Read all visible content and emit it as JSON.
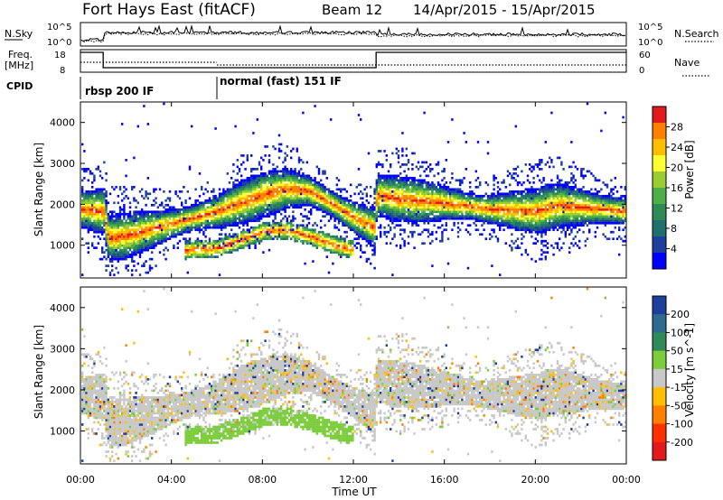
{
  "header": {
    "title": "Fort Hays East (fitACF)",
    "beam": "Beam 12",
    "date_range": "14/Apr/2015 - 15/Apr/2015"
  },
  "noise_panel": {
    "left_label": "N.Sky",
    "right_label": "N.Search",
    "left_ticks": [
      "10^5",
      "10^0"
    ],
    "right_ticks": [
      "10^5",
      "10^0"
    ]
  },
  "freq_panel": {
    "left_label_1": "Freq.",
    "left_label_2": "[MHz]",
    "left_ticks": [
      "18",
      "8"
    ],
    "right_label": "Nave",
    "right_ticks": [
      "60",
      "0"
    ]
  },
  "cpid": {
    "label": "CPID",
    "modes": [
      {
        "name": "rbsp 200 IF",
        "start_hour": 0
      },
      {
        "name": "normal (fast) 151 IF",
        "start_hour": 6
      }
    ]
  },
  "time_axis": {
    "label": "Time UT",
    "ticks": [
      "00:00",
      "04:00",
      "08:00",
      "12:00",
      "16:00",
      "20:00",
      "00:00"
    ],
    "tick_hours": [
      0,
      4,
      8,
      12,
      16,
      20,
      24
    ]
  },
  "chart_data": [
    {
      "type": "heatmap",
      "panel": "power",
      "ylabel": "Slant Range [km]",
      "ylim": [
        200,
        4500
      ],
      "yticks": [
        1000,
        2000,
        3000,
        4000
      ],
      "xlim_hours": [
        0,
        24
      ],
      "colorbar_label": "Power [dB]",
      "colorbar_ticks": [
        "28",
        "24",
        "20",
        "16",
        "12",
        "8",
        "4"
      ],
      "colorbar_colors": [
        "#e31a1c",
        "#ff7f00",
        "#ffbf00",
        "#ffff33",
        "#9acd32",
        "#4daf4a",
        "#2e8b57",
        "#1f6f6f",
        "#1f3f9f",
        "#0000ff"
      ],
      "bands": [
        {
          "name": "main echo",
          "x": [
            0,
            1,
            1.2,
            2,
            3,
            4,
            5,
            6,
            7,
            8,
            9,
            10,
            11,
            12,
            12.9,
            13,
            14,
            16,
            18,
            20,
            21,
            22,
            23,
            24
          ],
          "y": [
            1850,
            1800,
            1150,
            1200,
            1350,
            1500,
            1650,
            1800,
            2000,
            2200,
            2350,
            2300,
            2000,
            1650,
            1400,
            2200,
            2100,
            2000,
            1850,
            1800,
            1950,
            1900,
            1850,
            1800
          ]
        },
        {
          "name": "lower echo",
          "x": [
            4.5,
            6,
            7,
            8,
            9,
            10,
            11,
            12
          ],
          "y": [
            850,
            900,
            1100,
            1300,
            1350,
            1200,
            1000,
            850
          ]
        }
      ]
    },
    {
      "type": "heatmap",
      "panel": "velocity",
      "ylabel": "Slant Range [km]",
      "ylim": [
        200,
        4500
      ],
      "yticks": [
        1000,
        2000,
        3000,
        4000
      ],
      "xlim_hours": [
        0,
        24
      ],
      "colorbar_label": "Velocity [m s^-1]",
      "colorbar_ticks": [
        "200",
        "100",
        "50",
        "15",
        "-15",
        "-50",
        "-100",
        "-200"
      ],
      "colorbar_colors": [
        "#1f3f9f",
        "#2e6b8f",
        "#2e8b57",
        "#7ccd3c",
        "#c8c8c8",
        "#ffbf00",
        "#ff7f00",
        "#ff3000",
        "#e31a1c"
      ],
      "dominant_value": "-15 to 15"
    }
  ]
}
